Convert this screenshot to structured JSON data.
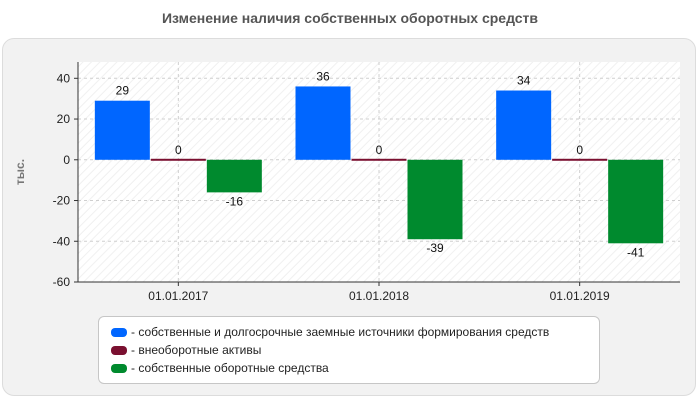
{
  "chart_data": {
    "type": "bar",
    "title": "Изменение наличия собственных оборотных средств",
    "ylabel": "тыс.",
    "xlabel": "",
    "categories": [
      "01.01.2017",
      "01.01.2018",
      "01.01.2019"
    ],
    "ylim": [
      -60,
      48
    ],
    "yticks": [
      40,
      20,
      0,
      -20,
      -40,
      -60
    ],
    "grid": true,
    "legend_position": "bottom",
    "series": [
      {
        "name": "- собственные и долгосрочные заемные источники формирования средств",
        "values": [
          29,
          36,
          34
        ],
        "labels": [
          "29",
          "36",
          "34"
        ],
        "color": "#0066ff"
      },
      {
        "name": "- внеоборотные активы",
        "values": [
          0,
          0,
          0
        ],
        "labels": [
          "0",
          "0",
          "0"
        ],
        "color": "#7a1030"
      },
      {
        "name": "- собственные оборотные средства",
        "values": [
          -16,
          -39,
          -41
        ],
        "labels": [
          "-16",
          "-39",
          "-41"
        ],
        "color": "#008a2e"
      }
    ]
  }
}
